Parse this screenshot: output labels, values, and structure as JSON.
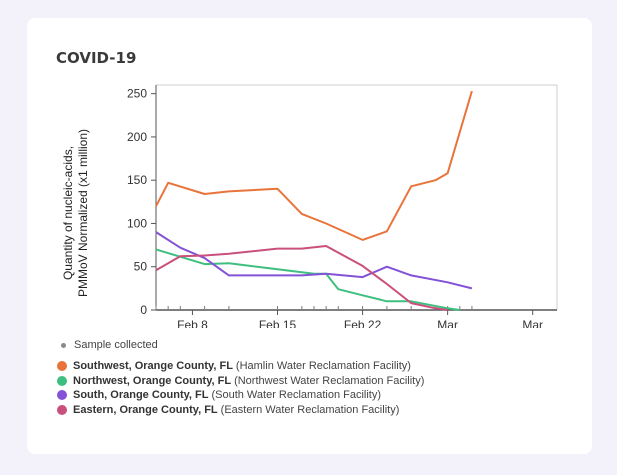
{
  "title": "COVID-19",
  "chart_data": {
    "type": "line",
    "ylabel_lines": [
      "Quantity of nucleic-acids,",
      "PMMoV Normalized (x1 million)"
    ],
    "ylim": [
      0,
      260
    ],
    "y_ticks": [
      0,
      50,
      100,
      150,
      200,
      250
    ],
    "x_domain": [
      "2022-02-05",
      "2022-03-10"
    ],
    "x_ticks": [
      {
        "date": "2022-02-08",
        "label": "Feb 8"
      },
      {
        "date": "2022-02-15",
        "label": "Feb 15"
      },
      {
        "date": "2022-02-22",
        "label": "Feb 22"
      },
      {
        "date": "2022-03-01",
        "label": "Mar"
      },
      {
        "date": "2022-03-08",
        "label": "Mar"
      }
    ],
    "grid": false,
    "series": [
      {
        "name": "Southwest, Orange County, FL",
        "facility": "(Hamlin Water Reclamation Facility)",
        "color": "#e8743b",
        "points": [
          [
            "2022-02-05",
            120
          ],
          [
            "2022-02-06",
            147
          ],
          [
            "2022-02-09",
            134
          ],
          [
            "2022-02-11",
            137
          ],
          [
            "2022-02-15",
            140
          ],
          [
            "2022-02-17",
            111
          ],
          [
            "2022-02-19",
            100
          ],
          [
            "2022-02-22",
            81
          ],
          [
            "2022-02-24",
            91
          ],
          [
            "2022-02-26",
            143
          ],
          [
            "2022-02-28",
            150
          ],
          [
            "2022-03-01",
            158
          ],
          [
            "2022-03-03",
            253
          ]
        ]
      },
      {
        "name": "Northwest, Orange County, FL",
        "facility": "(Northwest Water Reclamation Facility)",
        "color": "#3fbf7f",
        "points": [
          [
            "2022-02-05",
            70
          ],
          [
            "2022-02-09",
            53
          ],
          [
            "2022-02-11",
            54
          ],
          [
            "2022-02-15",
            47
          ],
          [
            "2022-02-18",
            42
          ],
          [
            "2022-02-19",
            42
          ],
          [
            "2022-02-20",
            24
          ],
          [
            "2022-02-22",
            17
          ],
          [
            "2022-02-24",
            10
          ],
          [
            "2022-02-26",
            10
          ],
          [
            "2022-03-01",
            2
          ],
          [
            "2022-03-02",
            0
          ]
        ]
      },
      {
        "name": "South, Orange County, FL",
        "facility": "(South Water Reclamation Facility)",
        "color": "#8352d6",
        "points": [
          [
            "2022-02-05",
            90
          ],
          [
            "2022-02-07",
            72
          ],
          [
            "2022-02-09",
            60
          ],
          [
            "2022-02-11",
            40
          ],
          [
            "2022-02-15",
            40
          ],
          [
            "2022-02-17",
            40
          ],
          [
            "2022-02-19",
            42
          ],
          [
            "2022-02-22",
            38
          ],
          [
            "2022-02-24",
            50
          ],
          [
            "2022-02-26",
            40
          ],
          [
            "2022-03-01",
            32
          ],
          [
            "2022-03-03",
            25
          ]
        ]
      },
      {
        "name": "Eastern, Orange County, FL",
        "facility": "(Eastern Water Reclamation Facility)",
        "color": "#c94f7c",
        "points": [
          [
            "2022-02-05",
            46
          ],
          [
            "2022-02-07",
            62
          ],
          [
            "2022-02-09",
            63
          ],
          [
            "2022-02-11",
            65
          ],
          [
            "2022-02-15",
            71
          ],
          [
            "2022-02-17",
            71
          ],
          [
            "2022-02-19",
            74
          ],
          [
            "2022-02-22",
            51
          ],
          [
            "2022-02-24",
            30
          ],
          [
            "2022-02-26",
            8
          ],
          [
            "2022-02-28",
            2
          ],
          [
            "2022-03-01",
            0
          ]
        ]
      }
    ]
  },
  "sample_collected_label": "Sample collected",
  "colors": {
    "axis": "#555555",
    "background": "#f3f2fb",
    "card": "#ffffff"
  }
}
